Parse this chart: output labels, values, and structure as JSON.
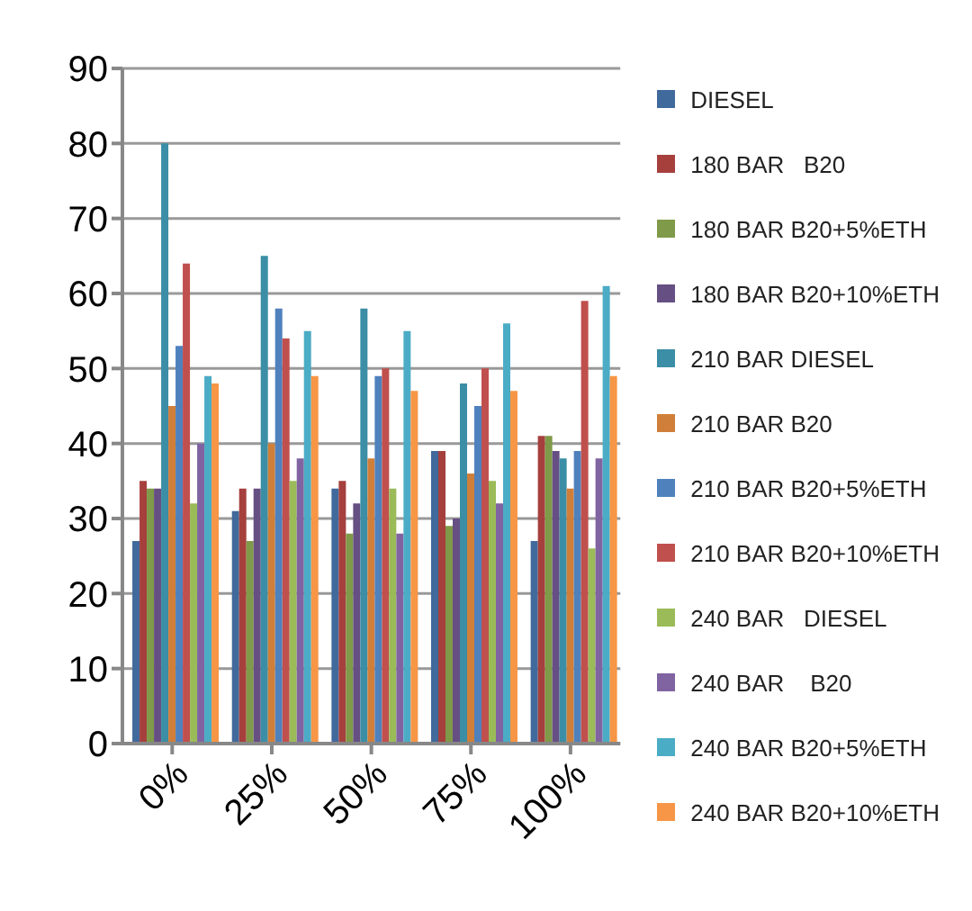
{
  "chart_data": {
    "type": "bar",
    "categories": [
      "0%",
      "25%",
      "50%",
      "75%",
      "100%"
    ],
    "ylim": [
      0,
      90
    ],
    "yticks": [
      0,
      10,
      20,
      30,
      40,
      50,
      60,
      70,
      80,
      90
    ],
    "grid": "y",
    "legend": "right",
    "series": [
      {
        "name": "DIESEL",
        "color": "#40699c",
        "values": [
          27,
          31,
          34,
          39,
          27
        ]
      },
      {
        "name": "180 BAR   B20",
        "color": "#a5403d",
        "values": [
          35,
          34,
          35,
          39,
          41
        ]
      },
      {
        "name": "180 BAR B20+5%ETH",
        "color": "#7f9a48",
        "values": [
          34,
          27,
          28,
          29,
          41
        ]
      },
      {
        "name": "180 BAR B20+10%ETH",
        "color": "#664f83",
        "values": [
          34,
          34,
          32,
          30,
          39
        ]
      },
      {
        "name": "210 BAR DIESEL",
        "color": "#3b8ea5",
        "values": [
          80,
          65,
          58,
          48,
          38
        ]
      },
      {
        "name": "210 BAR B20",
        "color": "#d07f3a",
        "values": [
          45,
          40,
          38,
          36,
          34
        ]
      },
      {
        "name": "210 BAR B20+5%ETH",
        "color": "#4f81bd",
        "values": [
          53,
          58,
          49,
          45,
          39
        ]
      },
      {
        "name": "210 BAR B20+10%ETH",
        "color": "#c0504d",
        "values": [
          64,
          54,
          50,
          50,
          59
        ]
      },
      {
        "name": "240 BAR   DIESEL",
        "color": "#9bbb59",
        "values": [
          32,
          35,
          34,
          35,
          26
        ]
      },
      {
        "name": "240 BAR    B20",
        "color": "#8064a2",
        "values": [
          40,
          38,
          28,
          32,
          38
        ]
      },
      {
        "name": "240 BAR B20+5%ETH",
        "color": "#4bacc6",
        "values": [
          49,
          55,
          55,
          56,
          61
        ]
      },
      {
        "name": "240 BAR B20+10%ETH",
        "color": "#f79646",
        "values": [
          48,
          49,
          47,
          47,
          49
        ]
      }
    ]
  }
}
